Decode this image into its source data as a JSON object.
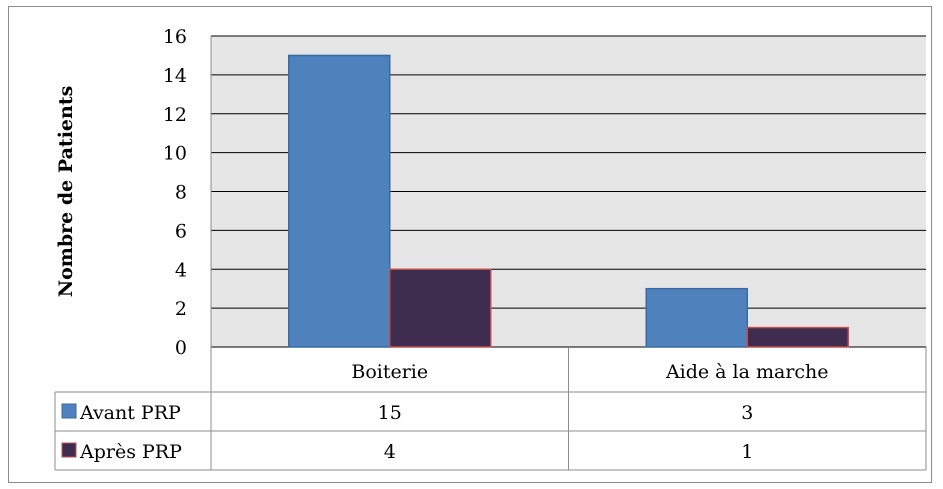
{
  "chart_data": {
    "type": "bar",
    "title": "",
    "xlabel": "",
    "ylabel": "Nombre de Patients",
    "categories": [
      "Boiterie",
      "Aide à la marche"
    ],
    "series": [
      {
        "name": "Avant PRP",
        "values": [
          15,
          3
        ],
        "color": "#4f81bd",
        "border": "#3a6aa3"
      },
      {
        "name": "Après PRP",
        "values": [
          4,
          1
        ],
        "color": "#3f2d4f",
        "border": "#c0504d"
      }
    ],
    "ylim": [
      0,
      16
    ],
    "yticks": [
      0,
      2,
      4,
      6,
      8,
      10,
      12,
      14,
      16
    ],
    "grid": true,
    "plot_background": "#e6e6e6",
    "legend": "data-table",
    "data_table": true
  }
}
